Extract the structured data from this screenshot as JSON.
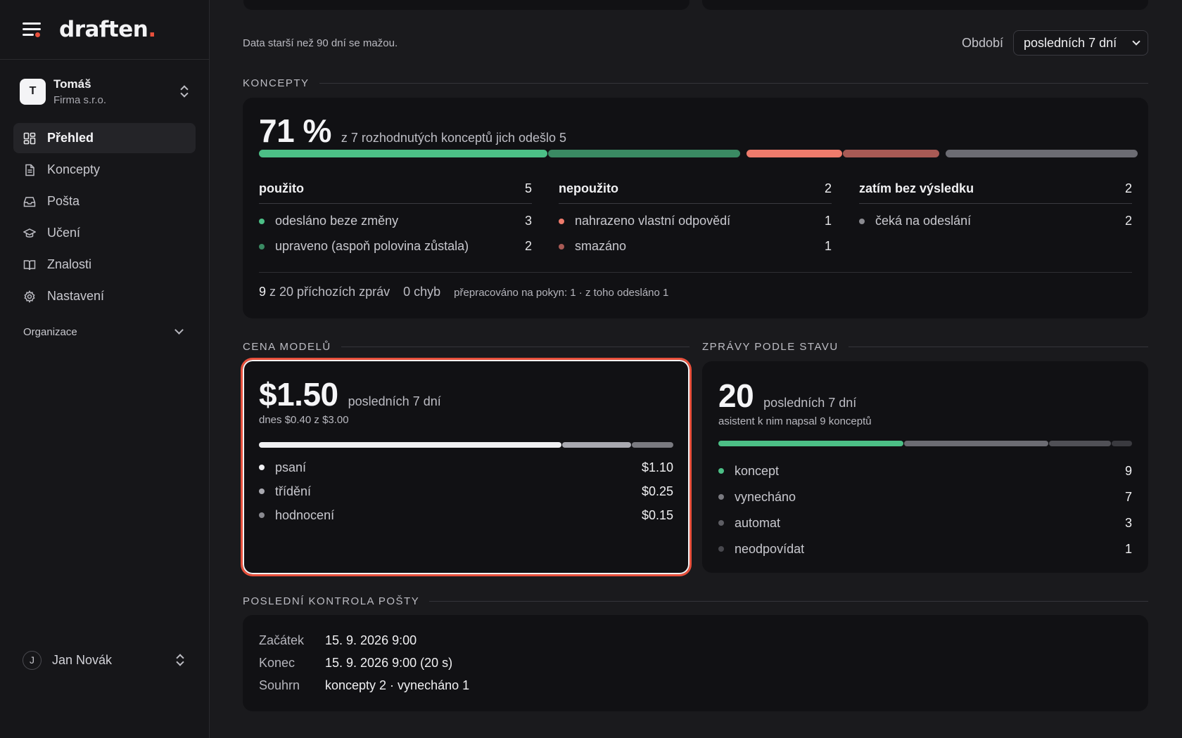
{
  "brand": {
    "name": "draften",
    "dot": "."
  },
  "account": {
    "initial": "T",
    "name": "Tomáš",
    "org": "Firma s.r.o."
  },
  "nav": [
    {
      "label": "Přehled",
      "icon": "dashboard-icon",
      "active": true
    },
    {
      "label": "Koncepty",
      "icon": "document-icon",
      "active": false
    },
    {
      "label": "Pošta",
      "icon": "inbox-icon",
      "active": false
    },
    {
      "label": "Učení",
      "icon": "graduation-cap-icon",
      "active": false
    },
    {
      "label": "Znalosti",
      "icon": "book-icon",
      "active": false
    },
    {
      "label": "Nastavení",
      "icon": "gear-icon",
      "active": false
    }
  ],
  "organization": {
    "label": "Organizace"
  },
  "user": {
    "initial": "J",
    "name": "Jan Novák"
  },
  "info": {
    "text": "Data starší než 90 dní se mažou."
  },
  "period": {
    "label": "Období",
    "value": "posledních 7 dní"
  },
  "koncepty": {
    "title": "KONCEPTY",
    "percent": "71 %",
    "summary": "z 7 rozhodnutých konceptů jich odešlo 5",
    "bar": [
      {
        "name": "odesláno beze změny",
        "value": 3,
        "color": "#4cbf86"
      },
      {
        "name": "upraveno",
        "value": 2,
        "color": "#3a8a63"
      },
      {
        "name": "nahrazeno",
        "value": 1,
        "color": "#ee7b6c"
      },
      {
        "name": "smazáno",
        "value": 1,
        "color": "#a85a55"
      },
      {
        "name": "čeká",
        "value": 2,
        "color": "#6c6c73"
      }
    ],
    "groups": [
      {
        "label": "použito",
        "count": "5",
        "items": [
          {
            "label": "odesláno beze změny",
            "value": "3",
            "color": "#4cbf86"
          },
          {
            "label": "upraveno (aspoň polovina zůstala)",
            "value": "2",
            "color": "#3a8a63"
          }
        ]
      },
      {
        "label": "nepoužito",
        "count": "2",
        "items": [
          {
            "label": "nahrazeno vlastní odpovědí",
            "value": "1",
            "color": "#ee7b6c"
          },
          {
            "label": "smazáno",
            "value": "1",
            "color": "#a85a55"
          }
        ]
      },
      {
        "label": "zatím bez výsledku",
        "count": "2",
        "items": [
          {
            "label": "čeká na odeslání",
            "value": "2",
            "color": "#8a8a90"
          }
        ]
      }
    ],
    "footer": {
      "count": "9",
      "incoming": "z 20 příchozích zpráv",
      "errors": "0 chyb",
      "rework": "přepracováno na pokyn: 1 · z toho odesláno 1"
    }
  },
  "cena": {
    "title": "CENA MODELŮ",
    "total": "$1.50",
    "period": "posledních 7 dní",
    "today": "dnes $0.40 z $3.00",
    "bar": [
      {
        "name": "psaní",
        "value": 1.1,
        "color": "#f0f0f2"
      },
      {
        "name": "třídění",
        "value": 0.25,
        "color": "#a9a9b0"
      },
      {
        "name": "hodnocení",
        "value": 0.15,
        "color": "#7a7a80"
      }
    ],
    "items": [
      {
        "label": "psaní",
        "value": "$1.10",
        "color": "#f0f0f2"
      },
      {
        "label": "třídění",
        "value": "$0.25",
        "color": "#a9a9b0"
      },
      {
        "label": "hodnocení",
        "value": "$0.15",
        "color": "#8a8a90"
      }
    ]
  },
  "zpravy": {
    "title": "ZPRÁVY PODLE STAVU",
    "total": "20",
    "period": "posledních 7 dní",
    "note": "asistent k nim napsal 9 konceptů",
    "bar": [
      {
        "name": "koncept",
        "value": 9,
        "color": "#4cbf86"
      },
      {
        "name": "vynecháno",
        "value": 7,
        "color": "#6c6c73"
      },
      {
        "name": "automat",
        "value": 3,
        "color": "#505056"
      },
      {
        "name": "neodpovídat",
        "value": 1,
        "color": "#3a3a3f"
      }
    ],
    "items": [
      {
        "label": "koncept",
        "value": "9",
        "color": "#4cbf86"
      },
      {
        "label": "vynecháno",
        "value": "7",
        "color": "#7a7a80"
      },
      {
        "label": "automat",
        "value": "3",
        "color": "#5e5e64"
      },
      {
        "label": "neodpovídat",
        "value": "1",
        "color": "#48484e"
      }
    ]
  },
  "kontrola": {
    "title": "POSLEDNÍ KONTROLA POŠTY",
    "rows": [
      {
        "key": "Začátek",
        "value": "15. 9. 2026 9:00"
      },
      {
        "key": "Konec",
        "value": "15. 9. 2026 9:00 (20 s)"
      },
      {
        "key": "Souhrn",
        "value": "koncepty 2 · vynecháno 1"
      }
    ]
  }
}
